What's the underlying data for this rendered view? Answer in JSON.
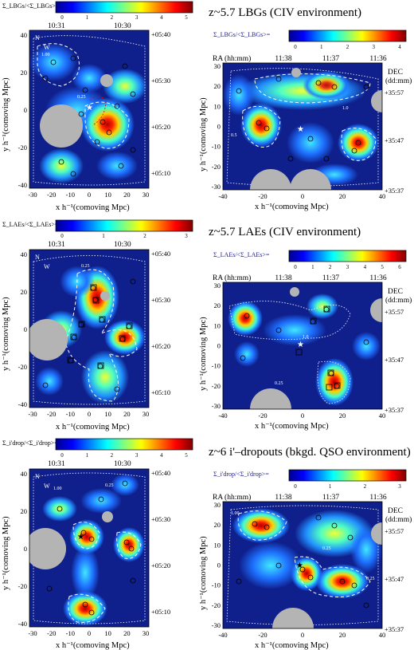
{
  "rows": [
    {
      "heading": "z~5.7 LBGs (CIV environment)",
      "left_cbar": {
        "label": "Σ_LBGs/<Σ_LBGs>=",
        "ticks": [
          "0",
          "1",
          "2",
          "3",
          "4",
          "5"
        ],
        "ra_ticks": [
          "10:31",
          "10:30"
        ]
      },
      "right_cbar": {
        "label": "Σ_LBGs/<Σ_LBGs>=",
        "ticks": [
          "0",
          "1",
          "2",
          "3",
          "4"
        ]
      },
      "left_dec": [
        "+05:40",
        "+05:30",
        "+05:20",
        "+05:10"
      ],
      "right_dec": [
        "+35:57",
        "+35:47",
        "+35:37"
      ],
      "contours": [
        "1.00",
        "0.25",
        "0.5",
        "1.0"
      ]
    },
    {
      "heading": "z~5.7 LAEs (CIV environment)",
      "left_cbar": {
        "label": "Σ_LAEs/<Σ_LAEs>=",
        "ticks": [
          "0",
          "1",
          "2",
          "3"
        ],
        "ra_ticks": [
          "10:31",
          "10:30"
        ]
      },
      "right_cbar": {
        "label": "Σ_LAEs/<Σ_LAEs>=",
        "ticks": [
          "0",
          "1",
          "2",
          "3",
          "4",
          "5",
          "6"
        ]
      },
      "left_dec": [
        "+05:40",
        "+05:30",
        "+05:20",
        "+05:10"
      ],
      "right_dec": [
        "+35:57",
        "+35:47",
        "+35:37"
      ],
      "contours": [
        "0.25",
        "1.0",
        "0.25"
      ]
    },
    {
      "heading": "z~6 i'–dropouts (bkgd. QSO environment)",
      "left_cbar": {
        "label": "Σ_i'drop/<Σ_i'drop>=",
        "ticks": [
          "0",
          "1",
          "2",
          "3",
          "4",
          "5"
        ],
        "ra_ticks": [
          "10:31",
          "10:30"
        ]
      },
      "right_cbar": {
        "label": "Σ_i'drop/<Σ_i'drop>=",
        "ticks": [
          "0",
          "1",
          "2",
          "3"
        ]
      },
      "left_dec": [
        "+05:40",
        "+05:30",
        "+05:20",
        "+05:10"
      ],
      "right_dec": [
        "+35:57",
        "+35:47",
        "+35:37"
      ],
      "contours": [
        "0.25",
        "1.00",
        "0.25",
        "1.00",
        "0.25"
      ]
    }
  ],
  "left_axes": {
    "xlabel": "x h⁻¹(comoving Mpc)",
    "ylabel": "y h⁻¹(comoving Mpc)",
    "xticks": [
      "-30",
      "-20",
      "-10",
      "0",
      "10",
      "20",
      "30"
    ],
    "yticks": [
      "40",
      "20",
      "0",
      "-20",
      "-40"
    ],
    "compass": {
      "n": "N",
      "w": "W"
    }
  },
  "right_axes": {
    "xlabel": "x h⁻¹(comoving Mpc)",
    "ylabel": "y h⁻¹(comoving Mpc)",
    "xticks": [
      "-40",
      "-20",
      "0",
      "20",
      "40"
    ],
    "yticks": [
      "30",
      "20",
      "10",
      "0",
      "-10",
      "-20",
      "-30"
    ],
    "ra_label": "RA (hh:mm)",
    "ra_ticks": [
      "11:38",
      "11:37",
      "11:36"
    ],
    "dec_label": "DEC",
    "dec_unit": "(dd:mm)"
  },
  "colors": {
    "bg": "#0f1f8c",
    "mask": "#b4b4b4"
  }
}
